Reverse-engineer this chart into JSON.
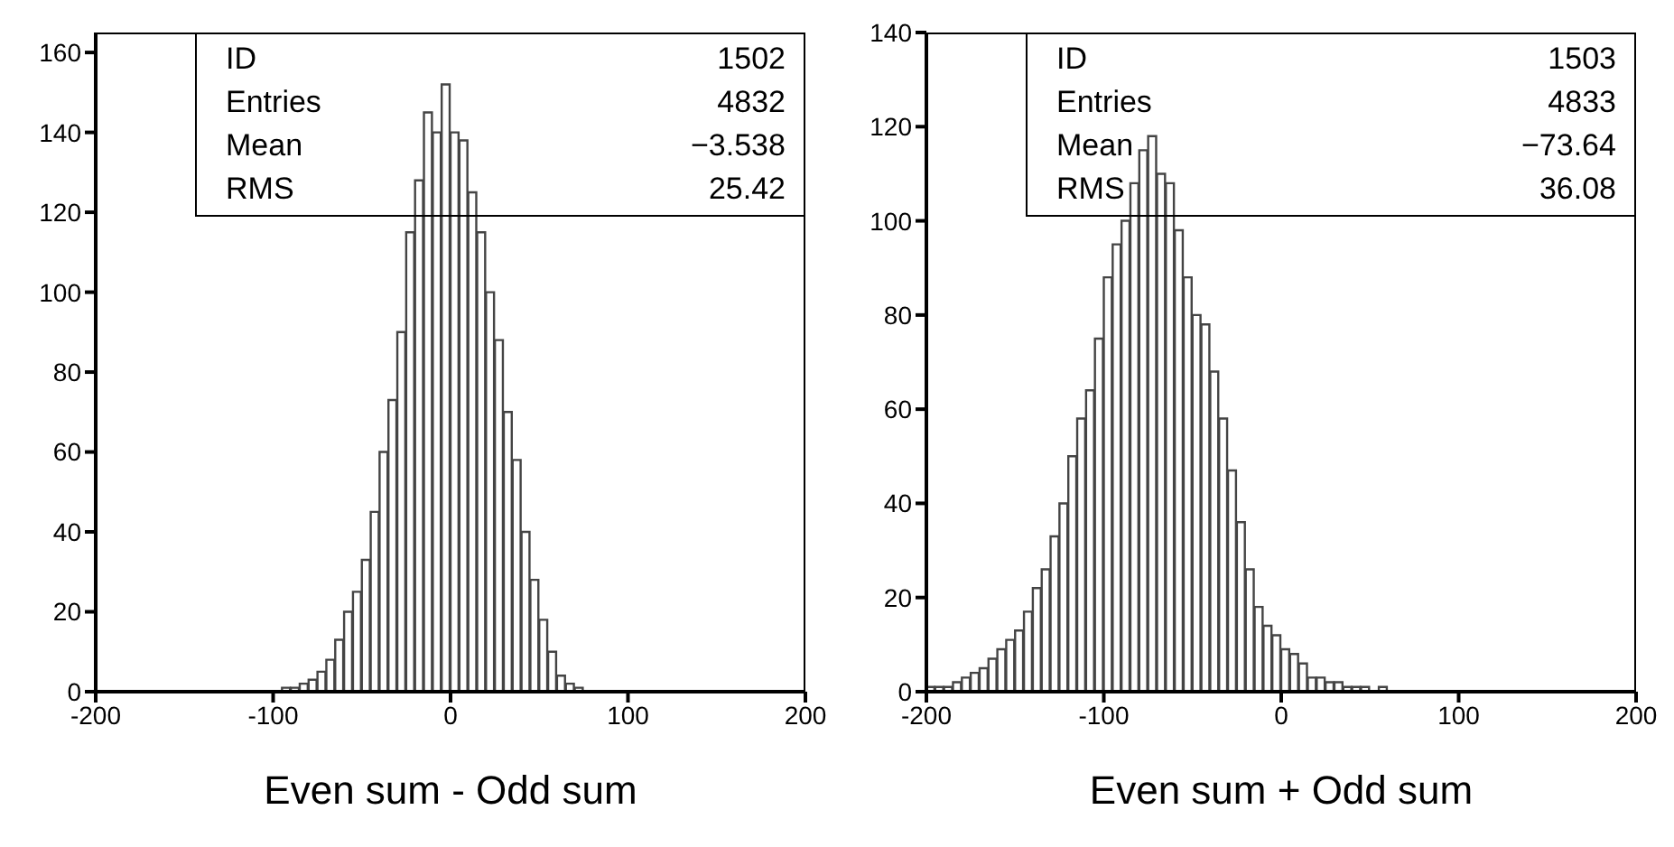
{
  "chart_data": [
    {
      "type": "histogram",
      "xlabel": "Even sum - Odd sum",
      "color": "#444444",
      "bins": [
        -100,
        -95,
        -90,
        -85,
        -80,
        -75,
        -70,
        -65,
        -60,
        -55,
        -50,
        -45,
        -40,
        -35,
        -30,
        -25,
        -20,
        -15,
        -10,
        -5,
        0,
        5,
        10,
        15,
        20,
        25,
        30,
        35,
        40,
        45,
        50,
        55,
        60,
        65,
        70,
        75,
        80
      ],
      "values": [
        0,
        1,
        1,
        2,
        3,
        5,
        8,
        13,
        20,
        25,
        33,
        45,
        60,
        73,
        90,
        115,
        128,
        145,
        140,
        152,
        140,
        138,
        125,
        115,
        100,
        88,
        70,
        58,
        40,
        28,
        18,
        10,
        4,
        2,
        1,
        0
      ],
      "xlim": [
        -200,
        200
      ],
      "xticks": [
        -200,
        -100,
        0,
        100,
        200
      ],
      "ylim": [
        0,
        165
      ],
      "yticks": [
        0,
        20,
        40,
        60,
        80,
        100,
        120,
        140,
        160
      ],
      "annotations": [
        "ID",
        "1502",
        "Entries",
        "4832",
        "Mean",
        "−3.538",
        "RMS",
        "25.42"
      ]
    },
    {
      "type": "histogram",
      "xlabel": "Even sum + Odd sum",
      "color": "#444444",
      "bins": [
        -200,
        -195,
        -190,
        -185,
        -180,
        -175,
        -170,
        -165,
        -160,
        -155,
        -150,
        -145,
        -140,
        -135,
        -130,
        -125,
        -120,
        -115,
        -110,
        -105,
        -100,
        -95,
        -90,
        -85,
        -80,
        -75,
        -70,
        -65,
        -60,
        -55,
        -50,
        -45,
        -40,
        -35,
        -30,
        -25,
        -20,
        -15,
        -10,
        -5,
        0,
        5,
        10,
        15,
        20,
        25,
        30,
        35,
        40,
        45,
        50,
        55,
        60
      ],
      "values": [
        1,
        1,
        1,
        2,
        3,
        4,
        5,
        7,
        9,
        11,
        13,
        17,
        22,
        26,
        33,
        40,
        50,
        58,
        64,
        75,
        88,
        95,
        100,
        108,
        115,
        118,
        110,
        108,
        98,
        88,
        80,
        78,
        68,
        58,
        47,
        36,
        26,
        18,
        14,
        12,
        9,
        8,
        6,
        3,
        3,
        2,
        2,
        1,
        1,
        1,
        0,
        1
      ],
      "xlim": [
        -200,
        200
      ],
      "xticks": [
        -200,
        -100,
        0,
        100,
        200
      ],
      "ylim": [
        0,
        140
      ],
      "yticks": [
        0,
        20,
        40,
        60,
        80,
        100,
        120,
        140
      ],
      "annotations": [
        "ID",
        "1503",
        "Entries",
        "4833",
        "Mean",
        "−73.64",
        "RMS",
        "36.08"
      ]
    }
  ]
}
